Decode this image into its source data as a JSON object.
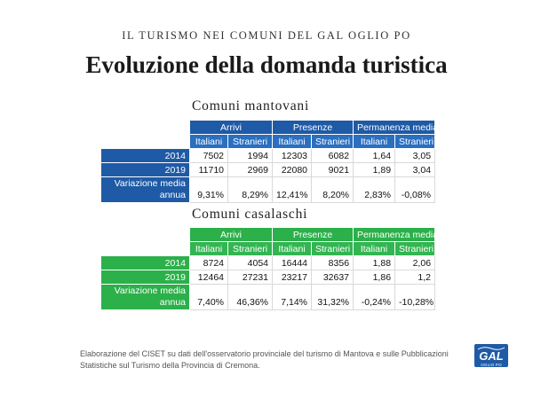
{
  "header": {
    "kicker": "IL TURISMO NEI COMUNI DEL GAL OGLIO PO",
    "title": "Evoluzione della domanda turistica"
  },
  "columns": {
    "groups": [
      "Arrivi",
      "Presenze",
      "Permanenza media"
    ],
    "sub": [
      "Italiani",
      "Stranieri",
      "Italiani",
      "Stranieri",
      "Italiani",
      "Stranieri"
    ]
  },
  "mantovani": {
    "title": "Comuni mantovani",
    "color": "#1f5aa6",
    "rows": [
      {
        "label": "2014",
        "values": [
          "7502",
          "1994",
          "12303",
          "6082",
          "1,64",
          "3,05"
        ]
      },
      {
        "label": "2019",
        "values": [
          "11710",
          "2969",
          "22080",
          "9021",
          "1,89",
          "3,04"
        ]
      },
      {
        "label_l1": "Variazione media",
        "label_l2": "annua",
        "values": [
          "9,31%",
          "8,29%",
          "12,41%",
          "8,20%",
          "2,83%",
          "-0,08%"
        ]
      }
    ]
  },
  "casalaschi": {
    "title": "Comuni casalaschi",
    "color": "#2bb04a",
    "rows": [
      {
        "label": "2014",
        "values": [
          "8724",
          "4054",
          "16444",
          "8356",
          "1,88",
          "2,06"
        ]
      },
      {
        "label": "2019",
        "values": [
          "12464",
          "27231",
          "23217",
          "32637",
          "1,86",
          "1,2"
        ]
      },
      {
        "label_l1": "Variazione media",
        "label_l2": "annua",
        "values": [
          "7,40%",
          "46,36%",
          "7,14%",
          "31,32%",
          "-0,24%",
          "-10,28%"
        ]
      }
    ]
  },
  "footer": {
    "note_line1": "Elaborazione del CISET su dati dell'osservatorio provinciale del turismo di Mantova e sulle Pubblicazioni",
    "note_line2": "Statistiche sul Turismo della Provincia di Cremona.",
    "logo_text": "GAL",
    "logo_sub": "OGLIO PO"
  }
}
